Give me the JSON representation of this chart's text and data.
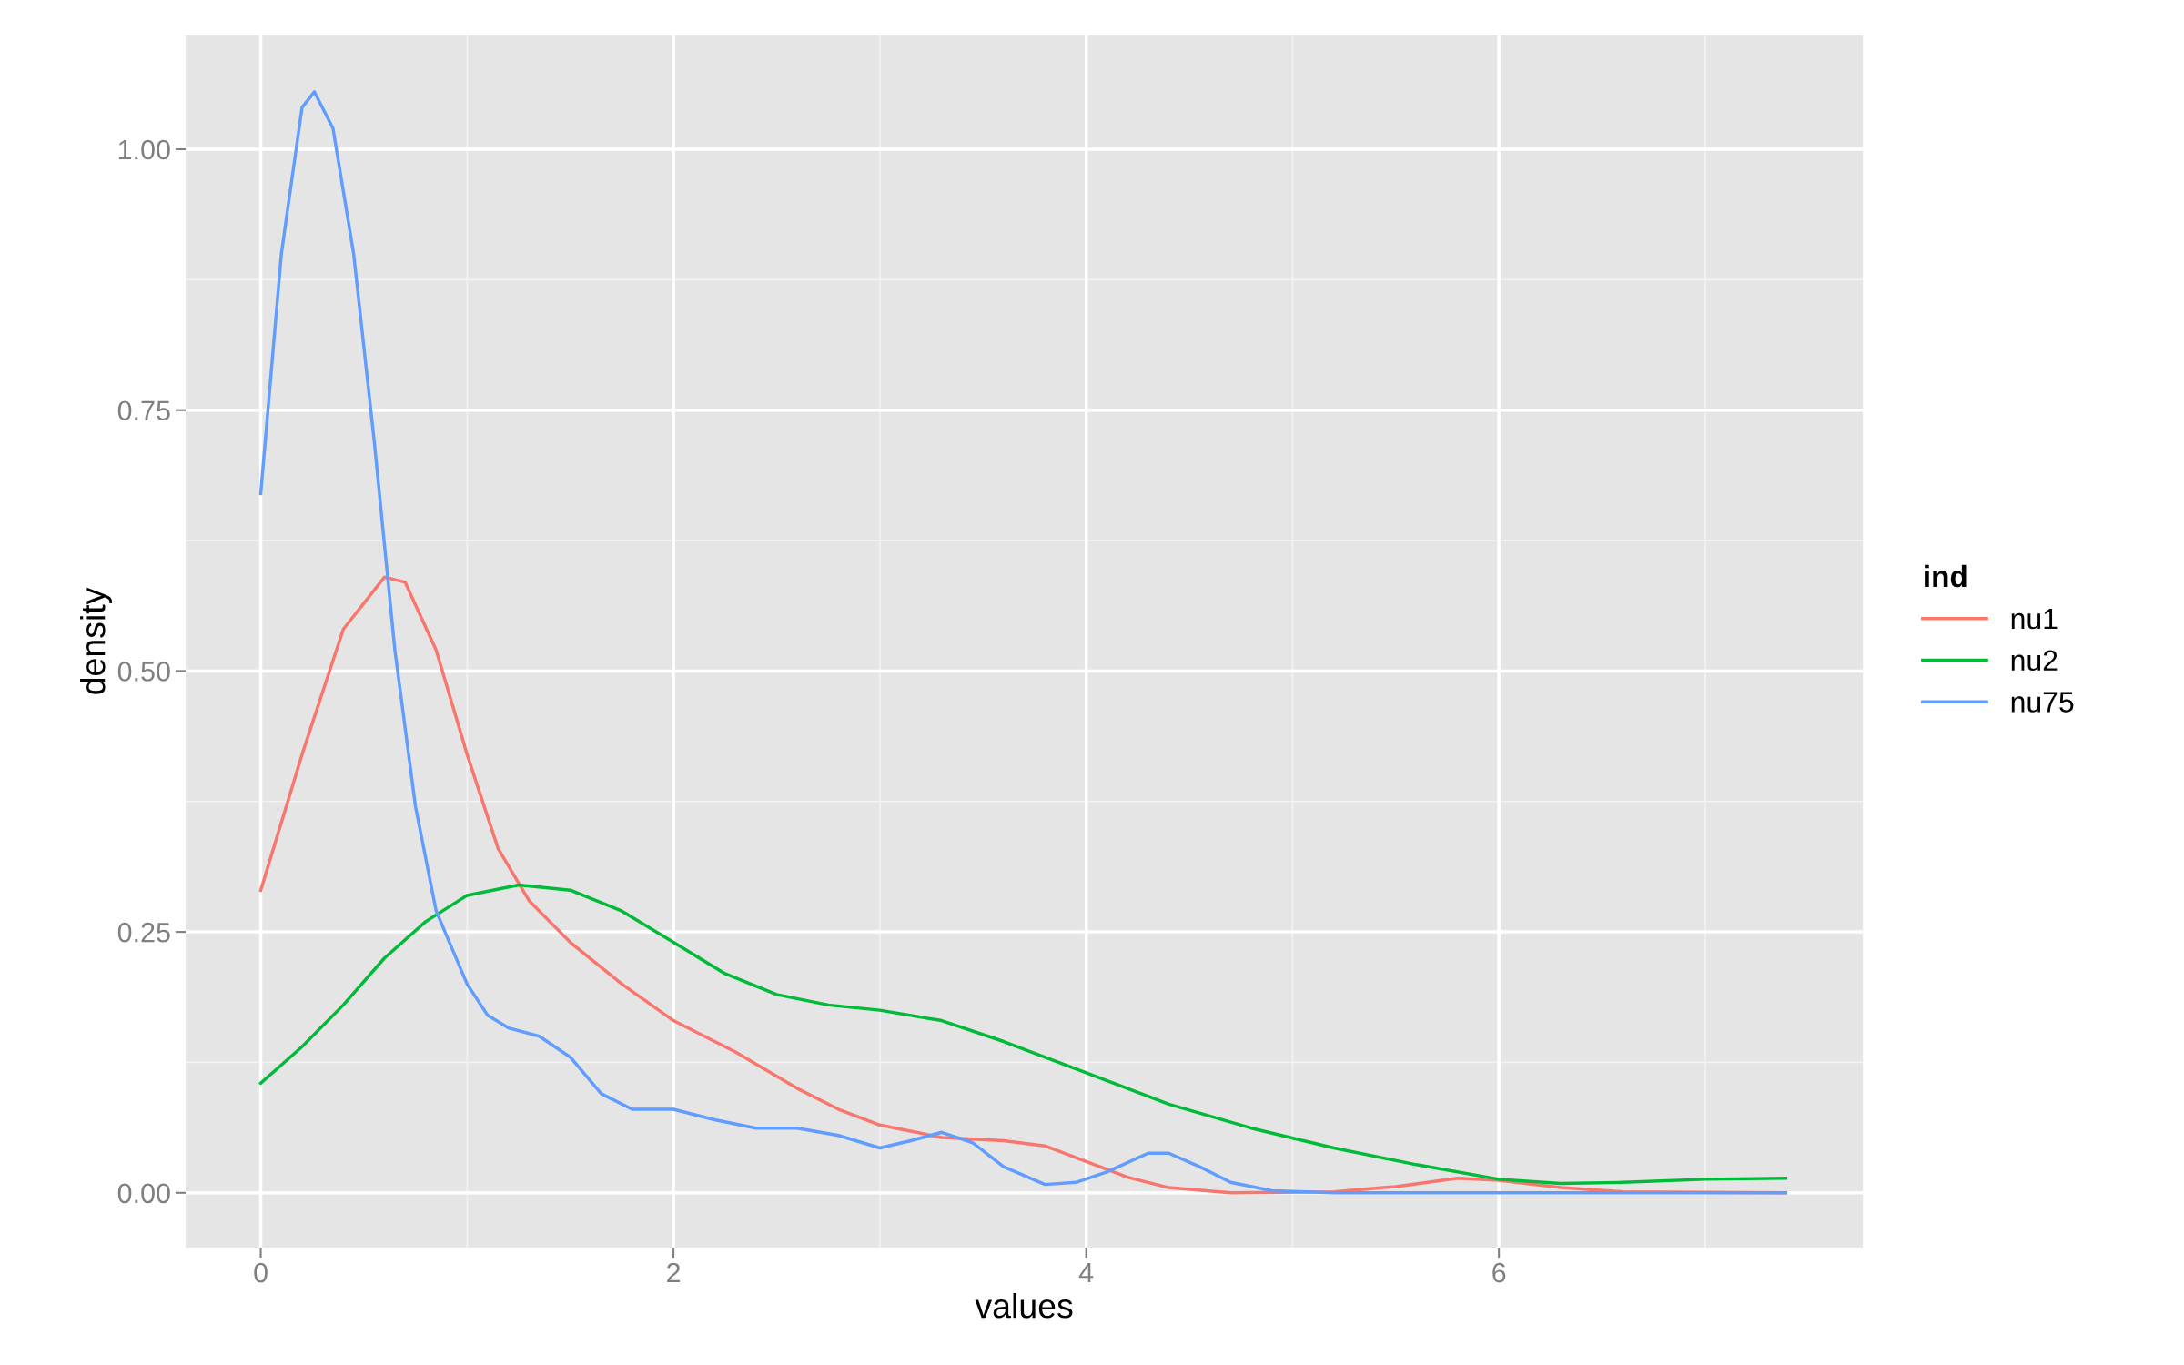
{
  "chart_data": {
    "type": "line",
    "xlabel": "values",
    "ylabel": "density",
    "legend_title": "ind",
    "legend": "right",
    "grid": true,
    "xlim": [
      -0.364,
      7.764
    ],
    "ylim": [
      -0.0525,
      1.109
    ],
    "xticks": [
      0,
      2,
      4,
      6
    ],
    "yticks": [
      {
        "value": 0,
        "label": "0.00"
      },
      {
        "value": 0.25,
        "label": "0.25"
      },
      {
        "value": 0.5,
        "label": "0.50"
      },
      {
        "value": 0.75,
        "label": "0.75"
      },
      {
        "value": 1,
        "label": "1.00"
      }
    ],
    "series": [
      {
        "name": "nu1",
        "color": "#f8766d",
        "x": [
          0,
          0.2,
          0.4,
          0.6,
          0.7,
          0.85,
          1.0,
          1.15,
          1.3,
          1.5,
          1.75,
          2.0,
          2.3,
          2.6,
          2.8,
          3.0,
          3.3,
          3.6,
          3.8,
          4.0,
          4.2,
          4.4,
          4.7,
          5.2,
          5.5,
          5.8,
          6.0,
          6.3,
          6.6,
          7.39
        ],
        "values": [
          0.29,
          0.42,
          0.54,
          0.59,
          0.585,
          0.52,
          0.42,
          0.33,
          0.28,
          0.24,
          0.2,
          0.165,
          0.135,
          0.1,
          0.08,
          0.065,
          0.053,
          0.05,
          0.045,
          0.03,
          0.015,
          0.005,
          0.0,
          0.001,
          0.006,
          0.014,
          0.012,
          0.005,
          0.001,
          0.0
        ]
      },
      {
        "name": "nu2",
        "color": "#00ba38",
        "x": [
          0,
          0.2,
          0.4,
          0.6,
          0.8,
          1.0,
          1.25,
          1.5,
          1.75,
          2.0,
          2.25,
          2.5,
          2.75,
          3.0,
          3.3,
          3.6,
          4.0,
          4.4,
          4.8,
          5.2,
          5.6,
          6.0,
          6.3,
          6.6,
          7.0,
          7.39
        ],
        "values": [
          0.105,
          0.14,
          0.18,
          0.225,
          0.26,
          0.285,
          0.295,
          0.29,
          0.27,
          0.24,
          0.21,
          0.19,
          0.18,
          0.175,
          0.165,
          0.145,
          0.115,
          0.085,
          0.062,
          0.043,
          0.027,
          0.013,
          0.009,
          0.01,
          0.013,
          0.014
        ]
      },
      {
        "name": "nu75",
        "color": "#619cff",
        "x": [
          0,
          0.1,
          0.2,
          0.26,
          0.35,
          0.45,
          0.55,
          0.65,
          0.75,
          0.85,
          1.0,
          1.1,
          1.2,
          1.35,
          1.5,
          1.65,
          1.8,
          2.0,
          2.2,
          2.4,
          2.6,
          2.8,
          3.0,
          3.15,
          3.3,
          3.45,
          3.6,
          3.8,
          3.95,
          4.1,
          4.3,
          4.4,
          4.55,
          4.7,
          4.9,
          5.2,
          7.39
        ],
        "values": [
          0.67,
          0.9,
          1.04,
          1.055,
          1.02,
          0.9,
          0.72,
          0.52,
          0.37,
          0.27,
          0.2,
          0.17,
          0.158,
          0.15,
          0.13,
          0.095,
          0.08,
          0.08,
          0.07,
          0.062,
          0.062,
          0.055,
          0.043,
          0.05,
          0.058,
          0.048,
          0.025,
          0.008,
          0.01,
          0.02,
          0.038,
          0.038,
          0.025,
          0.01,
          0.002,
          0.0,
          0.0
        ]
      }
    ]
  }
}
